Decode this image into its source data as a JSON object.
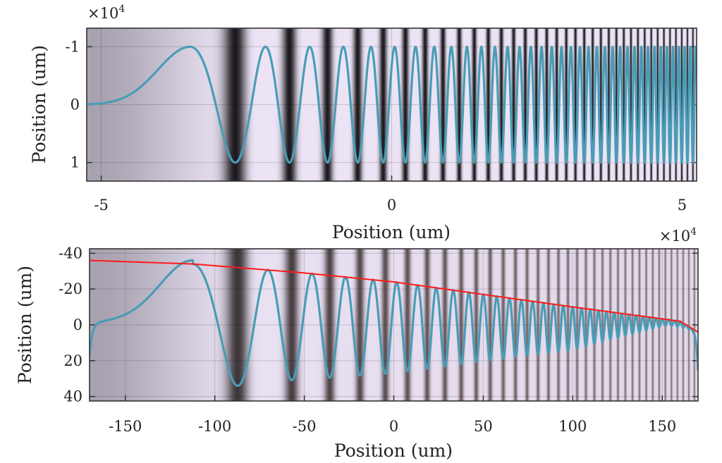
{
  "chart_data": [
    {
      "type": "line",
      "title": "",
      "xlabel": "Position (um)",
      "ylabel": "Position (um)",
      "multiplier": {
        "base": "×10",
        "exp": "4"
      },
      "xlim": [
        -5.25,
        5.25
      ],
      "ylim": [
        -1.32,
        1.32
      ],
      "y_reversed": true,
      "xticks": [
        "-5",
        "0",
        "5"
      ],
      "xtick_values": [
        -5,
        0,
        5
      ],
      "yticks": [
        "-1",
        "0",
        "1"
      ],
      "ytick_values": [
        -1,
        0,
        1
      ],
      "grid": true,
      "background": "intensity stripes (grayscale/lavender)",
      "series": [
        {
          "name": "trajectory",
          "color": "#4a9cb6",
          "amplitude": 1,
          "first_peak": {
            "x": -3.3,
            "y": -1
          },
          "first_trough": {
            "x": -2.6,
            "y": 1
          }
        }
      ]
    },
    {
      "type": "line",
      "title": "",
      "xlabel": "Position (um)",
      "ylabel": "Position (um)",
      "xlim": [
        -170,
        170
      ],
      "ylim": [
        -42.5,
        42.5
      ],
      "y_reversed": true,
      "xticks": [
        "-150",
        "-100",
        "-50",
        "0",
        "50",
        "100",
        "150"
      ],
      "xtick_values": [
        -150,
        -100,
        -50,
        0,
        50,
        100,
        150
      ],
      "yticks": [
        "-40",
        "-20",
        "0",
        "20",
        "40"
      ],
      "ytick_values": [
        -40,
        -20,
        0,
        20,
        40
      ],
      "grid": true,
      "background": "intensity stripes (grayscale/lavender)",
      "series": [
        {
          "name": "trajectory",
          "color": "#4a9cb6",
          "first_peak": {
            "x": -112,
            "y": -34
          },
          "first_trough": {
            "x": -85,
            "y": 34
          }
        },
        {
          "name": "envelope",
          "color": "#ff1a1a",
          "x": [
            -170,
            -112,
            -50,
            0,
            50,
            100,
            160,
            170
          ],
          "y": [
            -36,
            -34,
            -29,
            -24,
            -17,
            -10,
            -2,
            4
          ]
        }
      ]
    }
  ]
}
